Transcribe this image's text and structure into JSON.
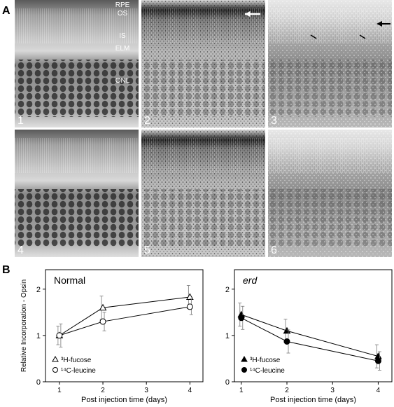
{
  "figure": {
    "panel_labels": [
      "A",
      "B"
    ],
    "micrographs": [
      {
        "number": "1",
        "layers": [
          "RPE",
          "OS",
          "IS",
          "ELM",
          "ONL"
        ]
      },
      {
        "number": "2"
      },
      {
        "number": "3"
      },
      {
        "number": "4"
      },
      {
        "number": "5"
      },
      {
        "number": "6"
      }
    ]
  },
  "chart_data": [
    {
      "type": "line",
      "title": "Normal",
      "x_label": "Post injection time (days)",
      "y_label": "Relative Incorporation - Opsin",
      "x": [
        1,
        2,
        4
      ],
      "xlim": [
        0.68,
        4.3
      ],
      "xticks": [
        1,
        2,
        3,
        4
      ],
      "ylim": [
        0,
        2.42
      ],
      "yticks": [
        0,
        1,
        2
      ],
      "legend": "lower left",
      "series": [
        {
          "name": "³H-fucose",
          "marker": "triangle",
          "filled": false,
          "color": "#000",
          "values": [
            1.0,
            1.6,
            1.83
          ],
          "errors": [
            0.2,
            0.25,
            0.25
          ]
        },
        {
          "name": "¹⁴C-leucine",
          "marker": "circle",
          "filled": false,
          "color": "#000",
          "values": [
            1.0,
            1.3,
            1.62
          ],
          "errors": [
            0.25,
            0.2,
            0.17
          ]
        }
      ]
    },
    {
      "type": "line",
      "title": "erd",
      "x_label": "Post injection time (days)",
      "x": [
        1,
        2,
        4
      ],
      "xlim": [
        0.85,
        4.3
      ],
      "xticks": [
        1,
        2,
        3,
        4
      ],
      "ylim": [
        0,
        2.42
      ],
      "yticks": [
        0,
        1,
        2
      ],
      "legend": "lower left",
      "series": [
        {
          "name": "³H-fucose",
          "marker": "triangle",
          "filled": true,
          "color": "#000",
          "values": [
            1.45,
            1.1,
            0.55
          ],
          "errors": [
            0.25,
            0.25,
            0.25
          ]
        },
        {
          "name": "¹⁴C-leucine",
          "marker": "circle",
          "filled": true,
          "color": "#000",
          "values": [
            1.38,
            0.87,
            0.45
          ],
          "errors": [
            0.25,
            0.25,
            0.2
          ]
        }
      ]
    }
  ]
}
